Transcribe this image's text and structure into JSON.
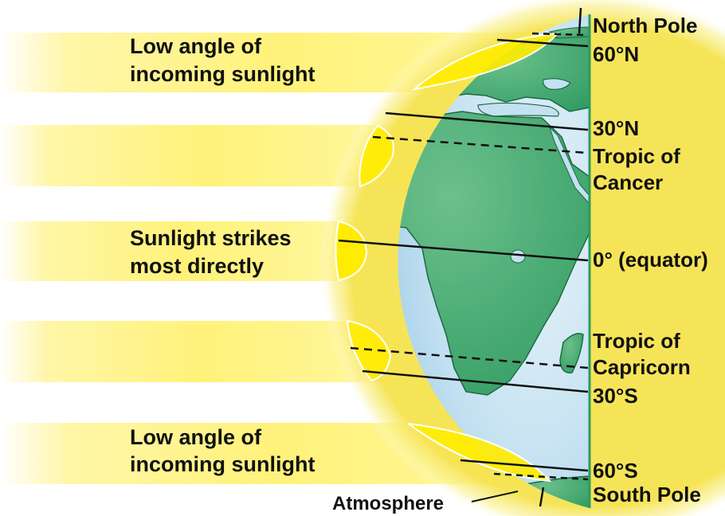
{
  "band_labels": {
    "top": [
      "Low angle of",
      "incoming sunlight"
    ],
    "middle": [
      "Sunlight strikes",
      "most directly"
    ],
    "bottom": [
      "Low angle of",
      "incoming sunlight"
    ]
  },
  "latitude_labels": {
    "north_pole": "North Pole",
    "lat_60n": "60°N",
    "lat_30n": "30°N",
    "tropic_cancer": [
      "Tropic of",
      "Cancer"
    ],
    "equator": "0° (equator)",
    "tropic_capricorn": [
      "Tropic of",
      "Capricorn"
    ],
    "lat_30s": "30°S",
    "lat_60s": "60°S",
    "south_pole": "South Pole"
  },
  "atmosphere_label": "Atmosphere",
  "colors": {
    "sunlight": "#ffec00",
    "ocean": "#c3e1f1",
    "land": "#3fa66e",
    "atmosphere_glow": "#f7e76a"
  }
}
